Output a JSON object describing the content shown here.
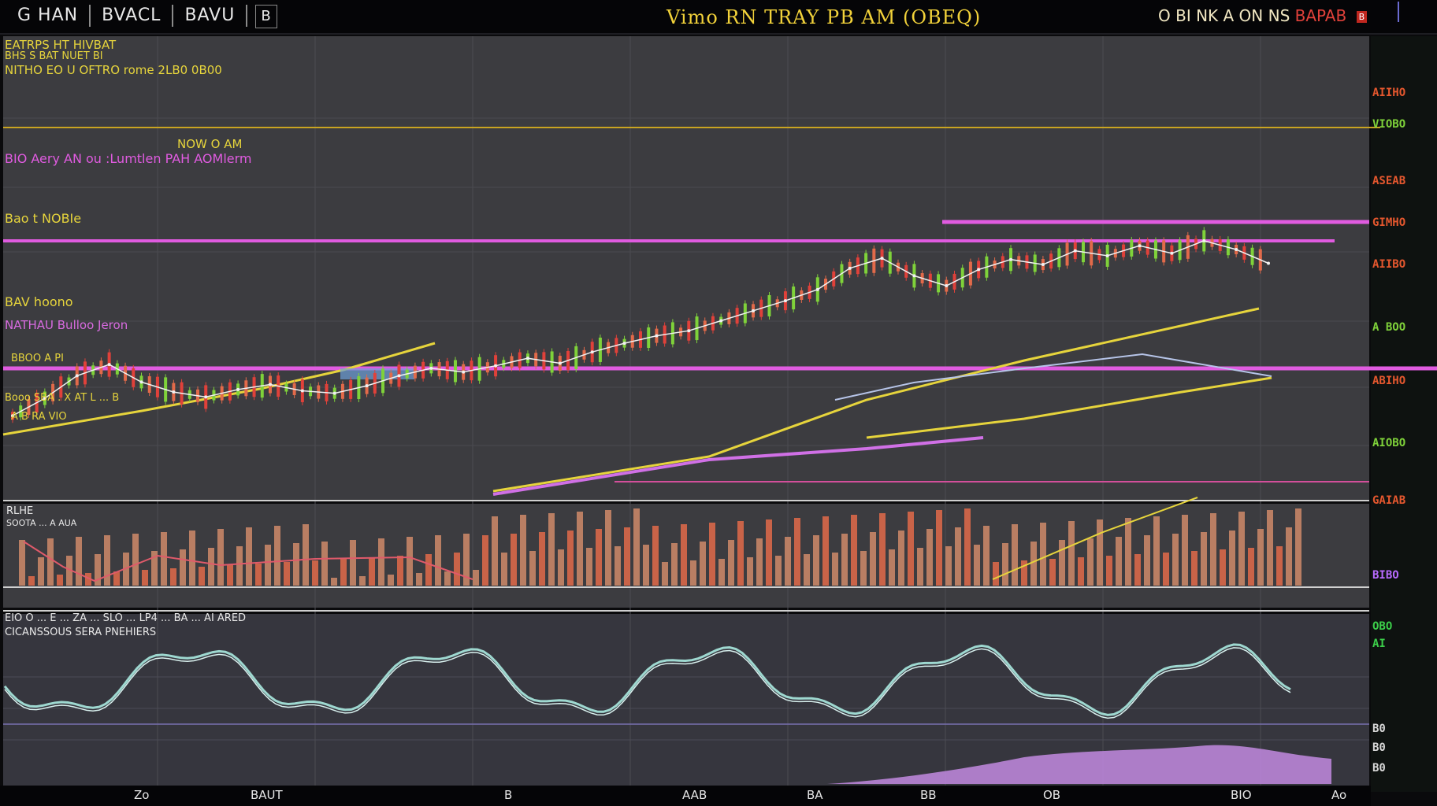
{
  "header": {
    "tabs": [
      "G HAN",
      "BVACL",
      "BAVU",
      "B"
    ],
    "title": "Vimo RN TRAY PB AM (OBEQ)",
    "status": "O BI NK A ON NS",
    "status_red": "BAPAB",
    "badge": "B"
  },
  "main": {
    "info_lines": [
      "EATRPS HT HIVBAT",
      "BHS S BAT NUET BI",
      "NITHO EO U OFTRO rome 2LB0 0B00"
    ],
    "note": "NOW O AM",
    "study": "BIO Aery AN ou :Lumtlen PAH AOMlerm",
    "level_a": "Bao t NOBIe",
    "level_b": "BAV hoono",
    "level_c": "NATHAU Bulloo Jeron",
    "level_d": "BBOO A PI",
    "sma": "Booo SBA . X AT L ... B",
    "sma_sub": "A B RA VIO"
  },
  "volume": {
    "title": "RLHE",
    "subtitle": "SOOTA ... A AUA"
  },
  "oscillator": {
    "header": "EIO O ... E ... ZA ... SLO ... LP4 ... BA ... AI ARED",
    "title": "CICANSSOUS SERA PNEHIERS"
  },
  "axis_right": {
    "labels": [
      {
        "text": "AIIHO",
        "color": "#e4572e"
      },
      {
        "text": "VIOBO",
        "color": "#7fd23a"
      },
      {
        "text": "ASEAB",
        "color": "#e4572e"
      },
      {
        "text": "GIMHO",
        "color": "#e4572e"
      },
      {
        "text": "AIIBO",
        "color": "#e4572e"
      },
      {
        "text": "A BOO",
        "color": "#7fd23a"
      },
      {
        "text": "ABIHO",
        "color": "#e4572e"
      },
      {
        "text": "AIOBO",
        "color": "#7fd23a"
      },
      {
        "text": "GAIAB",
        "color": "#e4572e"
      },
      {
        "text": "BIBO",
        "color": "#b86bff"
      },
      {
        "text": "OBO",
        "color": "#3ccf4a"
      },
      {
        "text": "AI",
        "color": "#3ccf4a"
      },
      {
        "text": "B0",
        "color": "#d8d8d8"
      },
      {
        "text": "B0",
        "color": "#d8d8d8"
      },
      {
        "text": "B0",
        "color": "#d8d8d8"
      }
    ]
  },
  "x_axis": [
    "Zo",
    "BAUT",
    "B",
    "AAB",
    "BA",
    "BB",
    "OB",
    "BIO",
    "Ao"
  ],
  "colors": {
    "magenta": "#e05be0",
    "yellow": "#e6d43c",
    "cyan": "#9ed8d0"
  },
  "chart_data": {
    "type": "line",
    "title": "Vimo RN TRAY PB AM (OBEQ)",
    "series": [
      {
        "name": "price",
        "values": [
          20,
          34,
          52,
          61,
          47,
          39,
          35,
          41,
          45,
          40,
          38,
          44,
          52,
          58,
          55,
          60,
          66,
          62,
          71,
          78,
          84,
          88,
          96,
          104,
          112,
          121,
          138,
          146,
          132,
          124,
          137,
          145,
          141,
          152,
          148,
          156,
          150,
          160,
          153,
          142
        ]
      }
    ]
  }
}
